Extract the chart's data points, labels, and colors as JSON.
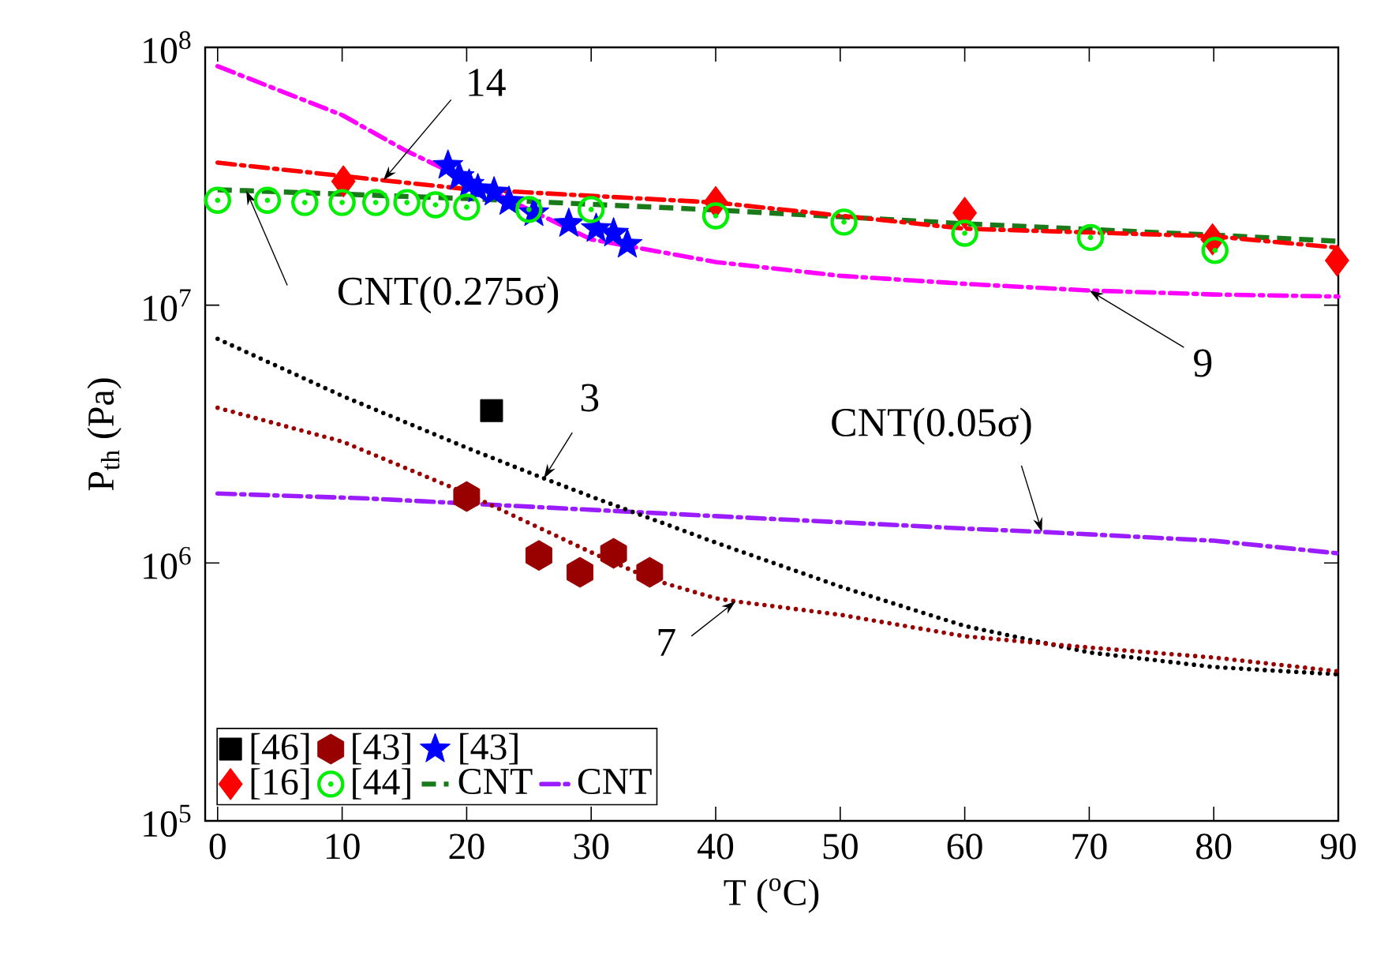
{
  "chart_data": {
    "type": "scatter",
    "xlabel": "T ($^{o}$C)",
    "ylabel": "P$_{th}$ (Pa)",
    "xlim": [
      -1,
      90
    ],
    "ylim": [
      100000,
      100000000
    ],
    "log": "y",
    "xticks": [
      0,
      10,
      20,
      30,
      40,
      50,
      60,
      70,
      80,
      90
    ],
    "yticks": [
      {
        "value": 100000,
        "label": "10$^{5}$"
      },
      {
        "value": 1000000,
        "label": "10$^{6}$"
      },
      {
        "value": 10000000,
        "label": "10$^{7}$"
      },
      {
        "value": 100000000,
        "label": "10$^{8}$"
      }
    ],
    "legend": "bottom left",
    "grid": false,
    "series": [
      {
        "name": "[46]",
        "marker": "square",
        "color": "#000000",
        "x": [
          22
        ],
        "values": [
          3900000
        ]
      },
      {
        "name": "[43]",
        "color": "#990000",
        "x": [
          20,
          25.8,
          29.1,
          31.8,
          34.7
        ],
        "values": [
          1810000,
          1070000,
          920000,
          1090000,
          920000
        ]
      },
      {
        "name": "[43]",
        "marker": "star",
        "color": "#0000ff",
        "x": [
          18.5,
          19.4,
          20.2,
          20.9,
          22.2,
          23.4,
          25.4,
          28.2,
          30.4,
          31.8,
          32.9
        ],
        "values": [
          34800000,
          31500000,
          29400000,
          28200000,
          27400000,
          25200000,
          22800000,
          20700000,
          19800000,
          19000000,
          17200000
        ]
      },
      {
        "name": "[16]",
        "marker": "diamond",
        "color": "#ff0000",
        "x": [
          10.1,
          40,
          60,
          79.9,
          89.9
        ],
        "values": [
          30200000,
          25100000,
          22800000,
          18000000,
          14900000
        ]
      },
      {
        "name": "[44]",
        "marker": "circledot",
        "color": "#00ee00",
        "x": [
          0,
          4,
          7,
          10,
          12.7,
          15.2,
          17.5,
          20,
          25,
          30,
          40,
          50.3,
          60,
          70.1,
          80.1
        ],
        "values": [
          25500000,
          25500000,
          25000000,
          25000000,
          25000000,
          25000000,
          24500000,
          24000000,
          23500000,
          23500000,
          22200000,
          21000000,
          19000000,
          18300000,
          16300000
        ]
      },
      {
        "name": "CNT",
        "type": "line",
        "line_style": "dashed",
        "color": "#1a7a1a",
        "x": [
          0,
          2.3,
          20,
          40,
          60,
          80,
          90
        ],
        "values": [
          28000000,
          27800000,
          25900000,
          23400000,
          20700000,
          18700000,
          17700000
        ]
      },
      {
        "name": "CNT",
        "type": "line",
        "line_style": "dashdot",
        "color": "#9b1cff",
        "x": [
          0,
          12,
          40,
          55,
          60,
          66.2,
          80,
          90
        ],
        "values": [
          1860000,
          1780000,
          1520000,
          1400000,
          1360000,
          1320000,
          1220000,
          1090000
        ]
      },
      {
        "type": "line",
        "line_style": "dashdot",
        "color": "#ff0000",
        "x": [
          0,
          13.3,
          20,
          40,
          60,
          80,
          90
        ],
        "values": [
          35700000,
          30500000,
          28200000,
          25000000,
          19800000,
          18500000,
          16700000
        ]
      },
      {
        "type": "line",
        "line_style": "dashdot",
        "color": "#ff00ff",
        "x": [
          0,
          10,
          15,
          25,
          30,
          40,
          50,
          60,
          70,
          80,
          90
        ],
        "values": [
          84500000,
          54600000,
          40000000,
          23500000,
          18000000,
          14700000,
          13000000,
          12100000,
          11400000,
          11000000,
          10800000
        ]
      },
      {
        "type": "line",
        "line_style": "dotted",
        "color": "#000000",
        "x": [
          0,
          10,
          20,
          26.2,
          30,
          40,
          50,
          60,
          70,
          80,
          90
        ],
        "values": [
          7400000,
          4450000,
          2800000,
          2130000,
          1810000,
          1200000,
          810000,
          570000,
          450000,
          395000,
          370000
        ]
      },
      {
        "type": "line",
        "line_style": "dotted",
        "color": "#990000",
        "x": [
          0,
          10,
          20,
          30,
          35,
          40,
          41.6,
          50,
          60,
          70,
          80,
          90
        ],
        "values": [
          4000000,
          2960000,
          1860000,
          1100000,
          860000,
          730000,
          710000,
          630000,
          520000,
          470000,
          430000,
          380000
        ]
      }
    ],
    "annotations": [
      {
        "text": "14",
        "x": 13.3,
        "y": 30500000
      },
      {
        "text": "CNT(0.275σ)",
        "x": 2.3,
        "y": 27800000
      },
      {
        "text": "9",
        "x": 70,
        "y": 11400000
      },
      {
        "text": "3",
        "x": 26.2,
        "y": 2130000
      },
      {
        "text": "CNT(0.05σ)",
        "x": 66.2,
        "y": 1320000
      },
      {
        "text": "7",
        "x": 41.6,
        "y": 710000
      }
    ]
  }
}
